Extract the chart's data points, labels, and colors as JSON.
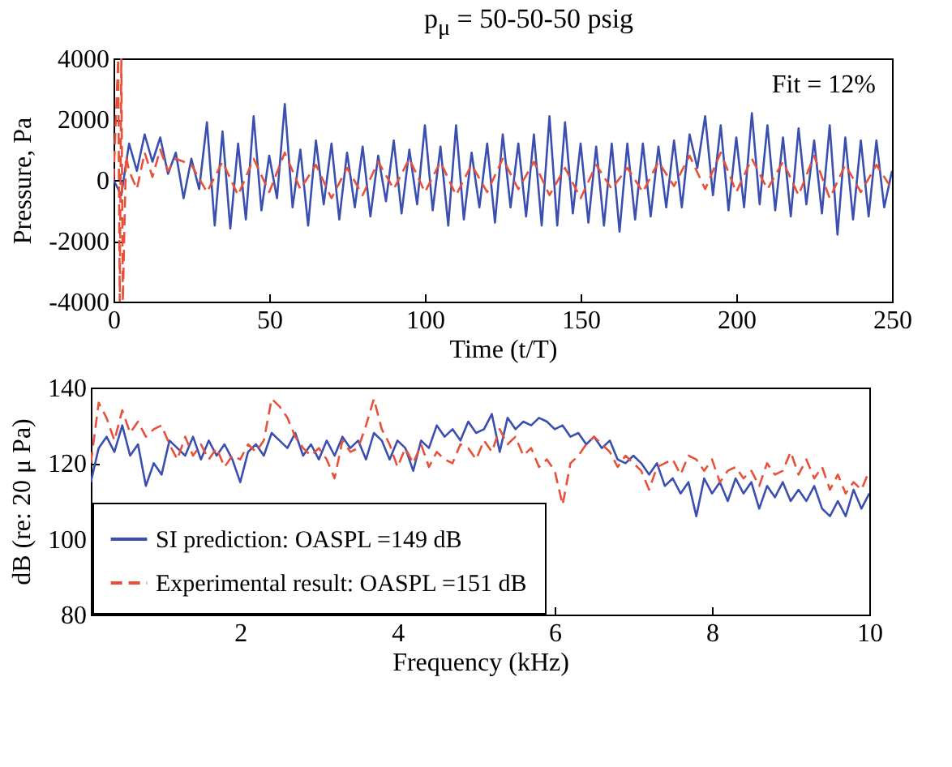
{
  "chart_data": [
    {
      "type": "line",
      "title": "p$_{μ}$ = 50-50-50 psig",
      "xlabel": "Time (t/T)",
      "ylabel": "Pressure, Pa",
      "annotations": [
        "Fit = 12%"
      ],
      "xlim": [
        0,
        250
      ],
      "ylim": [
        -4000,
        4000
      ],
      "xticks": [
        0,
        50,
        100,
        150,
        200,
        250
      ],
      "yticks": [
        -4000,
        -2000,
        0,
        2000,
        4000
      ],
      "grid": false,
      "legend": false,
      "series": [
        {
          "color": "#3a4fb0",
          "line_style": "solid",
          "x": [
            0,
            2.5,
            5,
            7.5,
            10,
            12.5,
            15,
            17.5,
            20,
            22.5,
            25,
            27.5,
            30,
            32.5,
            35,
            37.5,
            40,
            42.5,
            45,
            47.5,
            50,
            52.5,
            55,
            57.5,
            60,
            62.5,
            65,
            67.5,
            70,
            72.5,
            75,
            77.5,
            80,
            82.5,
            85,
            87.5,
            90,
            92.5,
            95,
            97.5,
            100,
            102.5,
            105,
            107.5,
            110,
            112.5,
            115,
            117.5,
            120,
            122.5,
            125,
            127.5,
            130,
            132.5,
            135,
            137.5,
            140,
            142.5,
            145,
            147.5,
            150,
            152.5,
            155,
            157.5,
            160,
            162.5,
            165,
            167.5,
            170,
            172.5,
            175,
            177.5,
            180,
            182.5,
            185,
            187.5,
            190,
            192.5,
            195,
            197.5,
            200,
            202.5,
            205,
            207.5,
            210,
            212.5,
            215,
            217.5,
            220,
            222.5,
            225,
            227.5,
            230,
            232.5,
            235,
            237.5,
            240,
            242.5,
            245,
            247.5,
            250
          ],
          "values": [
            0,
            -500,
            1200,
            300,
            1500,
            600,
            1400,
            200,
            900,
            -600,
            700,
            -300,
            1900,
            -1500,
            1600,
            -1600,
            1200,
            -1300,
            2100,
            -1000,
            800,
            -600,
            2500,
            -900,
            1000,
            -1500,
            1300,
            -800,
            1200,
            -1300,
            900,
            -900,
            1100,
            -1200,
            800,
            -700,
            1300,
            -1100,
            1000,
            -800,
            1800,
            -1000,
            1100,
            -1500,
            1800,
            -1300,
            900,
            -900,
            1200,
            -1400,
            1500,
            -900,
            1200,
            -1200,
            1500,
            -1500,
            2100,
            -1500,
            1900,
            -1100,
            1200,
            -1400,
            1100,
            -1500,
            1200,
            -1700,
            1200,
            -1300,
            1200,
            -1200,
            1100,
            -900,
            1300,
            -900,
            1500,
            400,
            2100,
            -500,
            1800,
            -1000,
            1400,
            -900,
            2200,
            -800,
            1800,
            -1000,
            1400,
            -1200,
            1700,
            -800,
            1300,
            -1100,
            1800,
            -1800,
            1400,
            -1300,
            1300,
            -1200,
            1300,
            -900,
            300
          ]
        },
        {
          "color": "#e8503a",
          "line_style": "dashed",
          "x": [
            0,
            1.5,
            2,
            2.5,
            3,
            4,
            5,
            7.5,
            10,
            12.5,
            15,
            17.5,
            20,
            25,
            30,
            35,
            40,
            45,
            50,
            55,
            60,
            65,
            70,
            75,
            80,
            85,
            90,
            95,
            100,
            105,
            110,
            115,
            120,
            125,
            130,
            135,
            140,
            145,
            150,
            155,
            160,
            165,
            170,
            175,
            180,
            185,
            190,
            195,
            200,
            205,
            210,
            215,
            220,
            225,
            230,
            235,
            240,
            245,
            250
          ],
          "values": [
            0,
            4000,
            -4000,
            4000,
            -4000,
            800,
            300,
            -300,
            900,
            100,
            1000,
            300,
            700,
            500,
            -400,
            600,
            -500,
            700,
            -400,
            900,
            -300,
            500,
            -600,
            400,
            -500,
            600,
            -300,
            700,
            -400,
            600,
            -500,
            500,
            -400,
            700,
            -300,
            600,
            -500,
            400,
            -600,
            500,
            -300,
            400,
            -400,
            600,
            -200,
            800,
            -300,
            900,
            -400,
            700,
            -300,
            600,
            -500,
            800,
            -600,
            500,
            -400,
            500,
            -300
          ]
        }
      ]
    },
    {
      "type": "line",
      "xlabel": "Frequency (kHz)",
      "ylabel": "dB (re: 20 μ Pa)",
      "xlim": [
        0.1,
        10
      ],
      "ylim": [
        80,
        140
      ],
      "xticks": [
        2,
        4,
        6,
        8,
        10
      ],
      "yticks": [
        80,
        100,
        120,
        140
      ],
      "grid": false,
      "legend": "bottom left",
      "series": [
        {
          "name": "SI prediction: OASPL =149 dB",
          "color": "#3a4fb0",
          "line_style": "solid",
          "x": [
            0.1,
            0.2,
            0.3,
            0.4,
            0.5,
            0.6,
            0.7,
            0.8,
            0.9,
            1.0,
            1.1,
            1.2,
            1.3,
            1.4,
            1.5,
            1.6,
            1.7,
            1.8,
            1.9,
            2.0,
            2.1,
            2.2,
            2.3,
            2.4,
            2.5,
            2.6,
            2.7,
            2.8,
            2.9,
            3.0,
            3.1,
            3.2,
            3.3,
            3.4,
            3.5,
            3.6,
            3.7,
            3.8,
            3.9,
            4.0,
            4.1,
            4.2,
            4.3,
            4.4,
            4.5,
            4.6,
            4.7,
            4.8,
            4.9,
            5.0,
            5.1,
            5.2,
            5.3,
            5.4,
            5.5,
            5.6,
            5.7,
            5.8,
            5.9,
            6.0,
            6.1,
            6.2,
            6.3,
            6.4,
            6.5,
            6.6,
            6.7,
            6.8,
            6.9,
            7.0,
            7.1,
            7.2,
            7.3,
            7.4,
            7.5,
            7.6,
            7.7,
            7.8,
            7.9,
            8.0,
            8.1,
            8.2,
            8.3,
            8.4,
            8.5,
            8.6,
            8.7,
            8.8,
            8.9,
            9.0,
            9.1,
            9.2,
            9.3,
            9.4,
            9.5,
            9.6,
            9.7,
            9.8,
            9.9,
            10.0
          ],
          "values": [
            115,
            124,
            127,
            123,
            130,
            122,
            125,
            114,
            120,
            117,
            126,
            124,
            122,
            127,
            121,
            126,
            122,
            125,
            121,
            115,
            123,
            125,
            122,
            128,
            126,
            124,
            128,
            122,
            125,
            121,
            126,
            122,
            127,
            124,
            126,
            121,
            128,
            126,
            121,
            126,
            124,
            118,
            126,
            124,
            130,
            127,
            129,
            126,
            131,
            128,
            129,
            133,
            123,
            132,
            129,
            131,
            130,
            132,
            131,
            129,
            130,
            127,
            128,
            125,
            127,
            124,
            126,
            121,
            120,
            122,
            120,
            117,
            120,
            114,
            116,
            112,
            115,
            106,
            116,
            112,
            115,
            110,
            116,
            112,
            115,
            108,
            114,
            111,
            115,
            110,
            113,
            110,
            114,
            108,
            106,
            110,
            106,
            113,
            108,
            112
          ]
        },
        {
          "name": "Experimental result: OASPL =151 dB",
          "color": "#e8503a",
          "line_style": "dashed",
          "x": [
            0.1,
            0.2,
            0.3,
            0.4,
            0.5,
            0.6,
            0.7,
            0.8,
            0.9,
            1.0,
            1.1,
            1.2,
            1.3,
            1.4,
            1.5,
            1.6,
            1.7,
            1.8,
            1.9,
            2.0,
            2.1,
            2.2,
            2.3,
            2.4,
            2.5,
            2.6,
            2.7,
            2.8,
            2.9,
            3.0,
            3.1,
            3.2,
            3.3,
            3.4,
            3.5,
            3.6,
            3.7,
            3.8,
            3.9,
            4.0,
            4.1,
            4.2,
            4.3,
            4.4,
            4.5,
            4.6,
            4.7,
            4.8,
            4.9,
            5.0,
            5.1,
            5.2,
            5.3,
            5.4,
            5.5,
            5.6,
            5.7,
            5.8,
            5.9,
            6.0,
            6.1,
            6.2,
            6.3,
            6.4,
            6.5,
            6.6,
            6.7,
            6.8,
            6.9,
            7.0,
            7.1,
            7.2,
            7.3,
            7.4,
            7.5,
            7.6,
            7.7,
            7.8,
            7.9,
            8.0,
            8.1,
            8.2,
            8.3,
            8.4,
            8.5,
            8.6,
            8.7,
            8.8,
            8.9,
            9.0,
            9.1,
            9.2,
            9.3,
            9.4,
            9.5,
            9.6,
            9.7,
            9.8,
            9.9,
            10.0
          ],
          "values": [
            120,
            136,
            132,
            126,
            134,
            128,
            131,
            127,
            129,
            130,
            125,
            121,
            127,
            122,
            125,
            121,
            124,
            119,
            122,
            121,
            125,
            123,
            126,
            137,
            135,
            132,
            127,
            124,
            122,
            124,
            121,
            116,
            126,
            123,
            124,
            130,
            137,
            129,
            125,
            119,
            124,
            120,
            125,
            119,
            123,
            121,
            120,
            125,
            124,
            121,
            126,
            123,
            129,
            125,
            127,
            122,
            124,
            119,
            121,
            118,
            109,
            120,
            122,
            125,
            127,
            125,
            123,
            119,
            122,
            120,
            118,
            113,
            119,
            120,
            121,
            117,
            122,
            121,
            118,
            121,
            115,
            118,
            119,
            116,
            118,
            114,
            120,
            117,
            118,
            123,
            117,
            121,
            116,
            119,
            113,
            117,
            112,
            115,
            113,
            118
          ]
        }
      ]
    }
  ]
}
